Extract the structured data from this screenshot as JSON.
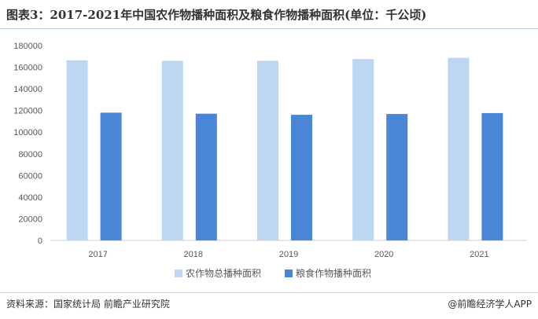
{
  "title": "图表3：2017-2021年中国农作物播种面积及粮食作物播种面积(单位：千公顷)",
  "source": "资料来源：国家统计局 前瞻产业研究院",
  "brand": "@前瞻经济学人APP",
  "colors": {
    "series1": "#bdd7f2",
    "series2": "#4a86d8",
    "axis": "#d0d0d0",
    "title_rule": "#b9c9e6"
  },
  "chart_data": {
    "type": "bar",
    "categories": [
      "2017",
      "2018",
      "2019",
      "2020",
      "2021"
    ],
    "series": [
      {
        "name": "农作物总播种面积",
        "values": [
          166332,
          165902,
          165931,
          167487,
          168695
        ]
      },
      {
        "name": "粮食作物播种面积",
        "values": [
          117989,
          117038,
          116064,
          116768,
          117631
        ]
      }
    ],
    "ylim": [
      0,
      180000
    ],
    "yticks": [
      0,
      20000,
      40000,
      60000,
      80000,
      100000,
      120000,
      140000,
      160000,
      180000
    ],
    "grid": false,
    "legend_position": "bottom-center"
  }
}
